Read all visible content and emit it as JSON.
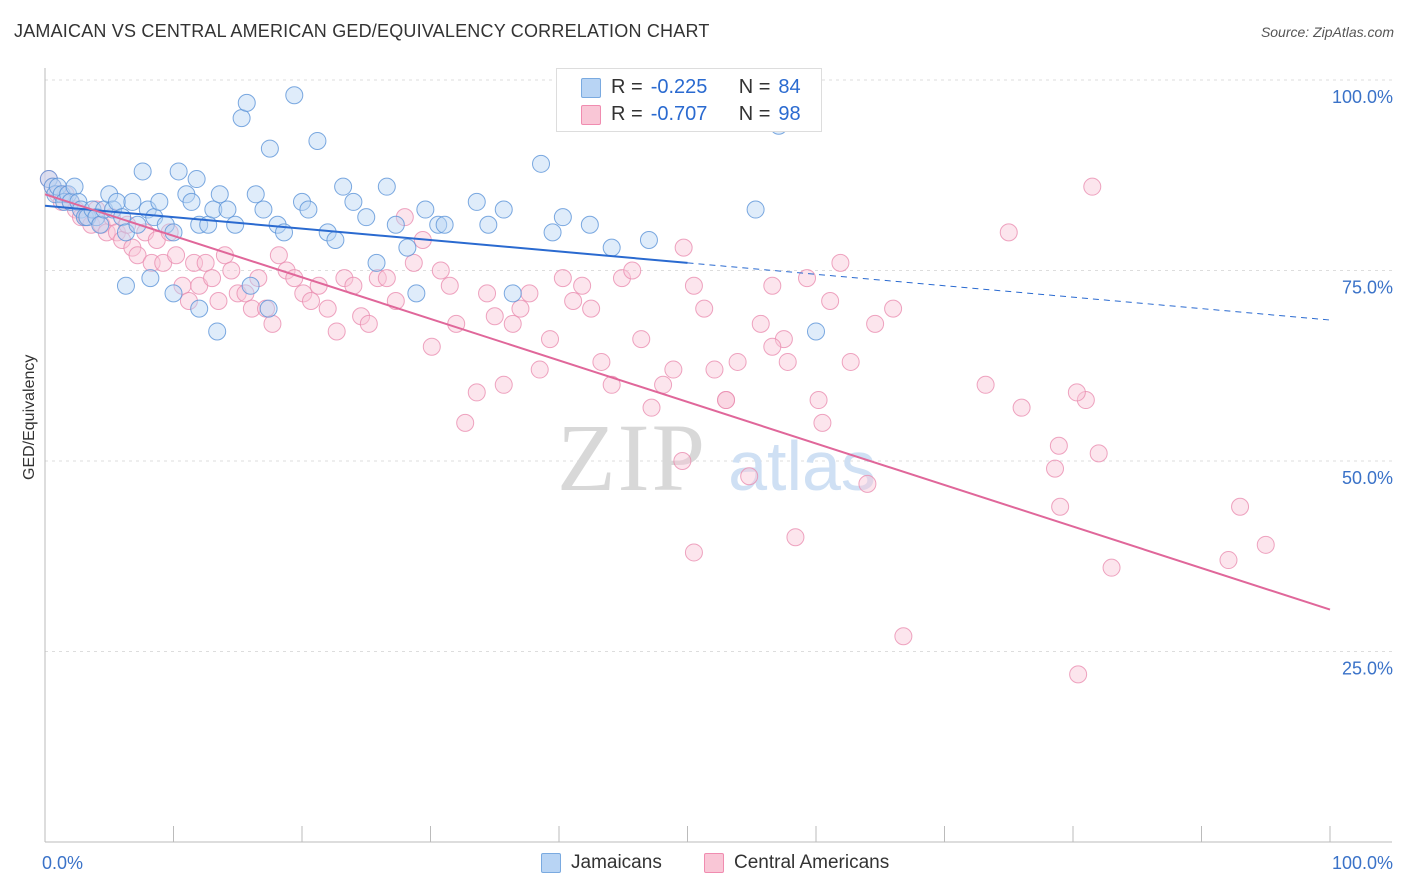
{
  "title": "JAMAICAN VS CENTRAL AMERICAN GED/EQUIVALENCY CORRELATION CHART",
  "source": "Source: ZipAtlas.com",
  "watermark": {
    "zip": "ZIP",
    "atlas": "atlas"
  },
  "legend": {
    "r_label": "R =",
    "n_label": "N =",
    "blue": {
      "r": "-0.225",
      "n": "84"
    },
    "pink": {
      "r": "-0.707",
      "n": "98"
    }
  },
  "bottom_legend": {
    "blue": "Jamaicans",
    "pink": "Central Americans"
  },
  "colors": {
    "blue_fill": "#b8d4f4",
    "blue_stroke": "#5b93d8",
    "blue_line": "#2a6ad0",
    "pink_fill": "#f9c6d6",
    "pink_stroke": "#ea8db0",
    "pink_line": "#e0679a",
    "tick_label": "#3a72c8"
  },
  "chart_data": {
    "type": "scatter",
    "ylabel": "GED/Equivalency",
    "xlim": [
      0,
      100
    ],
    "ylim": [
      0,
      100
    ],
    "x_tick_labels": [
      {
        "value": 0,
        "label": "0.0%"
      },
      {
        "value": 100,
        "label": "100.0%"
      }
    ],
    "y_tick_labels": [
      {
        "value": 100,
        "label": "100.0%"
      },
      {
        "value": 75,
        "label": "75.0%"
      },
      {
        "value": 50,
        "label": "50.0%"
      },
      {
        "value": 25,
        "label": "25.0%"
      }
    ],
    "series": [
      {
        "name": "Jamaicans",
        "r": -0.225,
        "n": 84,
        "trend": {
          "x0": 0,
          "y0": 83.5,
          "x1": 50,
          "y1": 76.0,
          "dash_to_x": 100,
          "dash_to_y": 68.5
        },
        "points": [
          [
            0.3,
            87
          ],
          [
            0.6,
            86
          ],
          [
            0.8,
            85
          ],
          [
            1.0,
            86
          ],
          [
            1.3,
            85
          ],
          [
            1.5,
            84
          ],
          [
            1.8,
            85
          ],
          [
            2.0,
            84
          ],
          [
            2.3,
            86
          ],
          [
            2.6,
            84
          ],
          [
            2.8,
            83
          ],
          [
            3.1,
            82
          ],
          [
            3.3,
            82
          ],
          [
            3.7,
            83
          ],
          [
            4.0,
            82
          ],
          [
            4.3,
            81
          ],
          [
            4.6,
            83
          ],
          [
            5.0,
            85
          ],
          [
            5.3,
            83
          ],
          [
            5.6,
            84
          ],
          [
            6.0,
            82
          ],
          [
            6.3,
            80
          ],
          [
            6.8,
            84
          ],
          [
            7.2,
            81
          ],
          [
            7.6,
            88
          ],
          [
            8.0,
            83
          ],
          [
            8.5,
            82
          ],
          [
            8.9,
            84
          ],
          [
            9.4,
            81
          ],
          [
            10.0,
            80
          ],
          [
            10.4,
            88
          ],
          [
            11.0,
            85
          ],
          [
            11.4,
            84
          ],
          [
            11.8,
            87
          ],
          [
            12.0,
            81
          ],
          [
            12.7,
            81
          ],
          [
            13.1,
            83
          ],
          [
            13.6,
            85
          ],
          [
            14.2,
            83
          ],
          [
            14.8,
            81
          ],
          [
            15.3,
            95
          ],
          [
            15.7,
            97
          ],
          [
            16.4,
            85
          ],
          [
            17.0,
            83
          ],
          [
            17.5,
            91
          ],
          [
            18.1,
            81
          ],
          [
            18.6,
            80
          ],
          [
            19.4,
            98
          ],
          [
            20.0,
            84
          ],
          [
            20.5,
            83
          ],
          [
            21.2,
            92
          ],
          [
            22.0,
            80
          ],
          [
            22.6,
            79
          ],
          [
            23.2,
            86
          ],
          [
            24.0,
            84
          ],
          [
            25.0,
            82
          ],
          [
            25.8,
            76
          ],
          [
            26.6,
            86
          ],
          [
            27.3,
            81
          ],
          [
            28.2,
            78
          ],
          [
            28.9,
            72
          ],
          [
            29.6,
            83
          ],
          [
            30.6,
            81
          ],
          [
            31.1,
            81
          ],
          [
            33.6,
            84
          ],
          [
            34.5,
            81
          ],
          [
            35.7,
            83
          ],
          [
            36.4,
            72
          ],
          [
            38.6,
            89
          ],
          [
            39.5,
            80
          ],
          [
            40.3,
            82
          ],
          [
            42.4,
            81
          ],
          [
            44.1,
            78
          ],
          [
            47.0,
            79
          ],
          [
            55.3,
            83
          ],
          [
            57.1,
            94
          ],
          [
            60.0,
            67
          ],
          [
            6.3,
            73
          ],
          [
            8.2,
            74
          ],
          [
            10.0,
            72
          ],
          [
            12.0,
            70
          ],
          [
            13.4,
            67
          ],
          [
            16.0,
            73
          ],
          [
            17.4,
            70
          ]
        ]
      },
      {
        "name": "Central Americans",
        "r": -0.707,
        "n": 98,
        "trend": {
          "x0": 0,
          "y0": 85.0,
          "x1": 100,
          "y1": 30.5
        },
        "points": [
          [
            0.3,
            87
          ],
          [
            0.6,
            86
          ],
          [
            1.0,
            85
          ],
          [
            1.3,
            84
          ],
          [
            1.6,
            85
          ],
          [
            2.0,
            84
          ],
          [
            2.4,
            83
          ],
          [
            2.8,
            82
          ],
          [
            3.2,
            82
          ],
          [
            3.6,
            81
          ],
          [
            4.0,
            83
          ],
          [
            4.4,
            81
          ],
          [
            4.8,
            80
          ],
          [
            5.2,
            82
          ],
          [
            5.6,
            80
          ],
          [
            6.0,
            79
          ],
          [
            6.4,
            81
          ],
          [
            6.8,
            78
          ],
          [
            7.2,
            77
          ],
          [
            7.8,
            80
          ],
          [
            8.3,
            76
          ],
          [
            8.7,
            79
          ],
          [
            9.2,
            76
          ],
          [
            9.7,
            80
          ],
          [
            10.2,
            77
          ],
          [
            10.7,
            73
          ],
          [
            11.2,
            71
          ],
          [
            11.6,
            76
          ],
          [
            12.0,
            73
          ],
          [
            12.5,
            76
          ],
          [
            13.0,
            74
          ],
          [
            13.5,
            71
          ],
          [
            14.0,
            77
          ],
          [
            14.5,
            75
          ],
          [
            15.0,
            72
          ],
          [
            15.6,
            72
          ],
          [
            16.1,
            70
          ],
          [
            16.6,
            74
          ],
          [
            17.2,
            70
          ],
          [
            17.7,
            68
          ],
          [
            18.2,
            77
          ],
          [
            18.8,
            75
          ],
          [
            19.4,
            74
          ],
          [
            20.1,
            72
          ],
          [
            20.7,
            71
          ],
          [
            21.3,
            73
          ],
          [
            22.0,
            70
          ],
          [
            22.7,
            67
          ],
          [
            23.3,
            74
          ],
          [
            24.0,
            73
          ],
          [
            24.6,
            69
          ],
          [
            25.2,
            68
          ],
          [
            25.9,
            74
          ],
          [
            26.6,
            74
          ],
          [
            27.3,
            71
          ],
          [
            28.0,
            82
          ],
          [
            28.7,
            76
          ],
          [
            29.4,
            79
          ],
          [
            30.1,
            65
          ],
          [
            30.8,
            75
          ],
          [
            31.5,
            73
          ],
          [
            32.0,
            68
          ],
          [
            32.7,
            55
          ],
          [
            33.6,
            59
          ],
          [
            34.4,
            72
          ],
          [
            35.0,
            69
          ],
          [
            35.7,
            60
          ],
          [
            36.4,
            68
          ],
          [
            37.0,
            70
          ],
          [
            37.7,
            72
          ],
          [
            38.5,
            62
          ],
          [
            39.3,
            66
          ],
          [
            40.3,
            74
          ],
          [
            41.1,
            71
          ],
          [
            41.8,
            73
          ],
          [
            42.5,
            70
          ],
          [
            43.3,
            63
          ],
          [
            44.1,
            60
          ],
          [
            44.9,
            74
          ],
          [
            45.7,
            75
          ],
          [
            46.4,
            66
          ],
          [
            47.2,
            57
          ],
          [
            48.1,
            60
          ],
          [
            48.9,
            62
          ],
          [
            49.7,
            78
          ],
          [
            50.5,
            38
          ],
          [
            51.3,
            70
          ],
          [
            52.1,
            62
          ],
          [
            53.0,
            58
          ],
          [
            53.9,
            63
          ],
          [
            54.8,
            48
          ],
          [
            55.7,
            68
          ],
          [
            56.6,
            73
          ],
          [
            57.5,
            66
          ],
          [
            58.4,
            40
          ],
          [
            59.3,
            74
          ],
          [
            60.2,
            58
          ],
          [
            61.1,
            71
          ],
          [
            61.9,
            76
          ],
          [
            62.7,
            63
          ],
          [
            64.0,
            47
          ],
          [
            66.0,
            70
          ],
          [
            73.2,
            60
          ],
          [
            75.0,
            80
          ],
          [
            76.0,
            57
          ],
          [
            78.6,
            49
          ],
          [
            80.4,
            22
          ],
          [
            81.0,
            58
          ],
          [
            82.0,
            51
          ],
          [
            93.0,
            44
          ],
          [
            56.6,
            65
          ],
          [
            49.6,
            50
          ],
          [
            50.5,
            73
          ],
          [
            57.8,
            63
          ],
          [
            64.6,
            68
          ],
          [
            66.8,
            27
          ],
          [
            80.3,
            59
          ],
          [
            78.9,
            52
          ],
          [
            81.5,
            86
          ],
          [
            83.0,
            36
          ],
          [
            95.0,
            39
          ],
          [
            79.0,
            44
          ],
          [
            60.5,
            55
          ],
          [
            92.1,
            37
          ],
          [
            53.0,
            58
          ]
        ]
      }
    ]
  }
}
